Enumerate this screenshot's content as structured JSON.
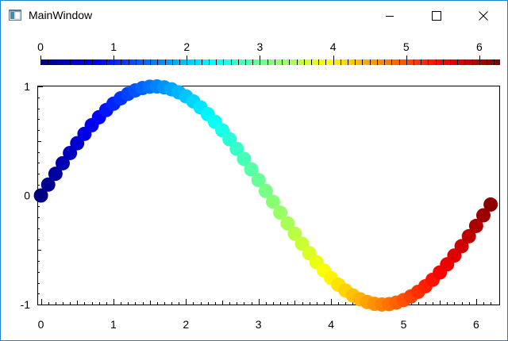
{
  "window": {
    "title": "MainWindow",
    "icon": "app-window-icon",
    "accent_color": "#1883d7",
    "buttons": {
      "minimize": "minimize-icon",
      "maximize": "maximize-icon",
      "close": "close-icon"
    }
  },
  "colorbar": {
    "min": 0,
    "max": 6.283,
    "tick_labels": [
      "0",
      "1",
      "2",
      "3",
      "4",
      "5",
      "6"
    ],
    "tick_values": [
      0,
      1,
      2,
      3,
      4,
      5,
      6
    ],
    "colormap": "jet"
  },
  "chart_data": {
    "type": "scatter",
    "title": "",
    "xlabel": "",
    "ylabel": "",
    "xlim": [
      -0.05,
      6.33
    ],
    "ylim": [
      -1,
      1
    ],
    "x_ticks": [
      0,
      1,
      2,
      3,
      4,
      5,
      6
    ],
    "x_tick_labels": [
      "0",
      "1",
      "2",
      "3",
      "4",
      "5",
      "6"
    ],
    "y_ticks": [
      -1,
      0,
      1
    ],
    "y_tick_labels": [
      "-1",
      "0",
      "1"
    ],
    "color_by": "x",
    "colormap": "jet",
    "x": [
      0.0,
      0.1,
      0.2,
      0.3,
      0.4,
      0.5,
      0.6,
      0.7,
      0.8,
      0.9,
      1.0,
      1.1,
      1.2,
      1.3,
      1.4,
      1.5,
      1.6,
      1.7,
      1.8,
      1.9,
      2.0,
      2.1,
      2.2,
      2.3,
      2.4,
      2.5,
      2.6,
      2.7,
      2.8,
      2.9,
      3.0,
      3.1,
      3.2,
      3.3,
      3.4,
      3.5,
      3.6,
      3.7,
      3.8,
      3.9,
      4.0,
      4.1,
      4.2,
      4.3,
      4.4,
      4.5,
      4.6,
      4.7,
      4.8,
      4.9,
      5.0,
      5.1,
      5.2,
      5.3,
      5.4,
      5.5,
      5.6,
      5.7,
      5.8,
      5.9,
      6.0,
      6.1,
      6.2
    ],
    "y": [
      0.0,
      0.0998,
      0.1987,
      0.2955,
      0.3894,
      0.4794,
      0.5646,
      0.6442,
      0.7174,
      0.7833,
      0.8415,
      0.8912,
      0.932,
      0.9636,
      0.9854,
      0.9975,
      0.9996,
      0.9917,
      0.9738,
      0.9463,
      0.9093,
      0.8632,
      0.8085,
      0.7457,
      0.6755,
      0.5985,
      0.5155,
      0.4274,
      0.335,
      0.2392,
      0.1411,
      0.0416,
      -0.0584,
      -0.1577,
      -0.2555,
      -0.3508,
      -0.4425,
      -0.5298,
      -0.6119,
      -0.6878,
      -0.7568,
      -0.8183,
      -0.8716,
      -0.9162,
      -0.9516,
      -0.9775,
      -0.9937,
      -0.9999,
      -0.9962,
      -0.9825,
      -0.9589,
      -0.9258,
      -0.8835,
      -0.8323,
      -0.7728,
      -0.7055,
      -0.6313,
      -0.5507,
      -0.4646,
      -0.3739,
      -0.2794,
      -0.1822,
      -0.0831
    ]
  }
}
